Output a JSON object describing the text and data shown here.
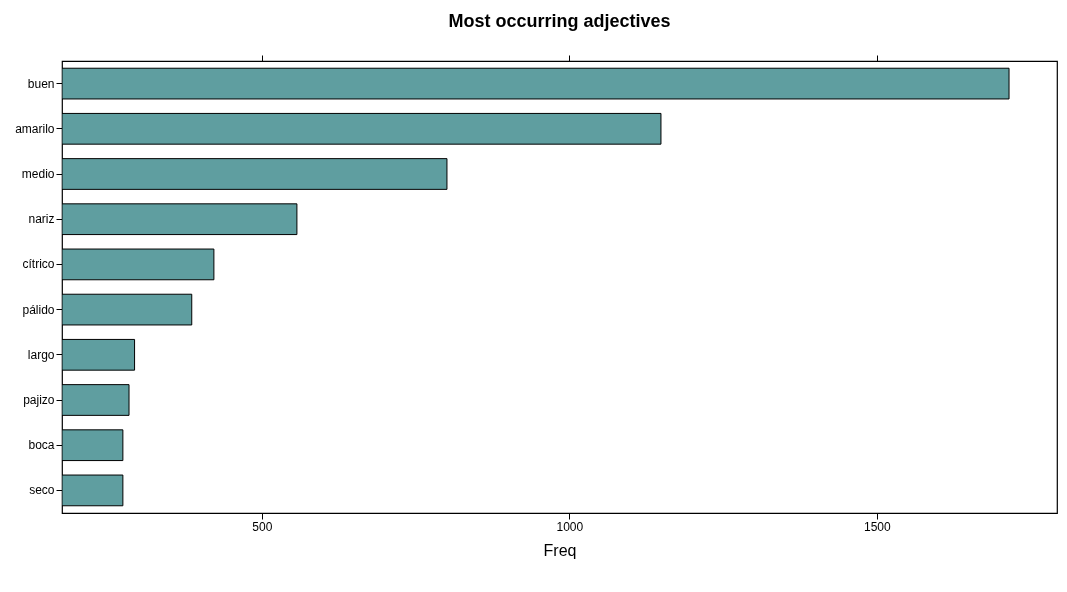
{
  "chart_data": {
    "type": "bar",
    "orientation": "horizontal",
    "title": "Most occurring adjectives",
    "xlabel": "Freq",
    "categories": [
      "buen",
      "amarilo",
      "medio",
      "nariz",
      "cítrico",
      "pálido",
      "largo",
      "pajizo",
      "boca",
      "seco"
    ],
    "values": [
      1715,
      1149,
      801,
      557,
      422,
      386,
      293,
      284,
      274,
      274
    ],
    "color": "#5f9ea0",
    "xlim": [
      175,
      1793
    ],
    "xticks": [
      500,
      1000,
      1500
    ],
    "grid": false
  }
}
